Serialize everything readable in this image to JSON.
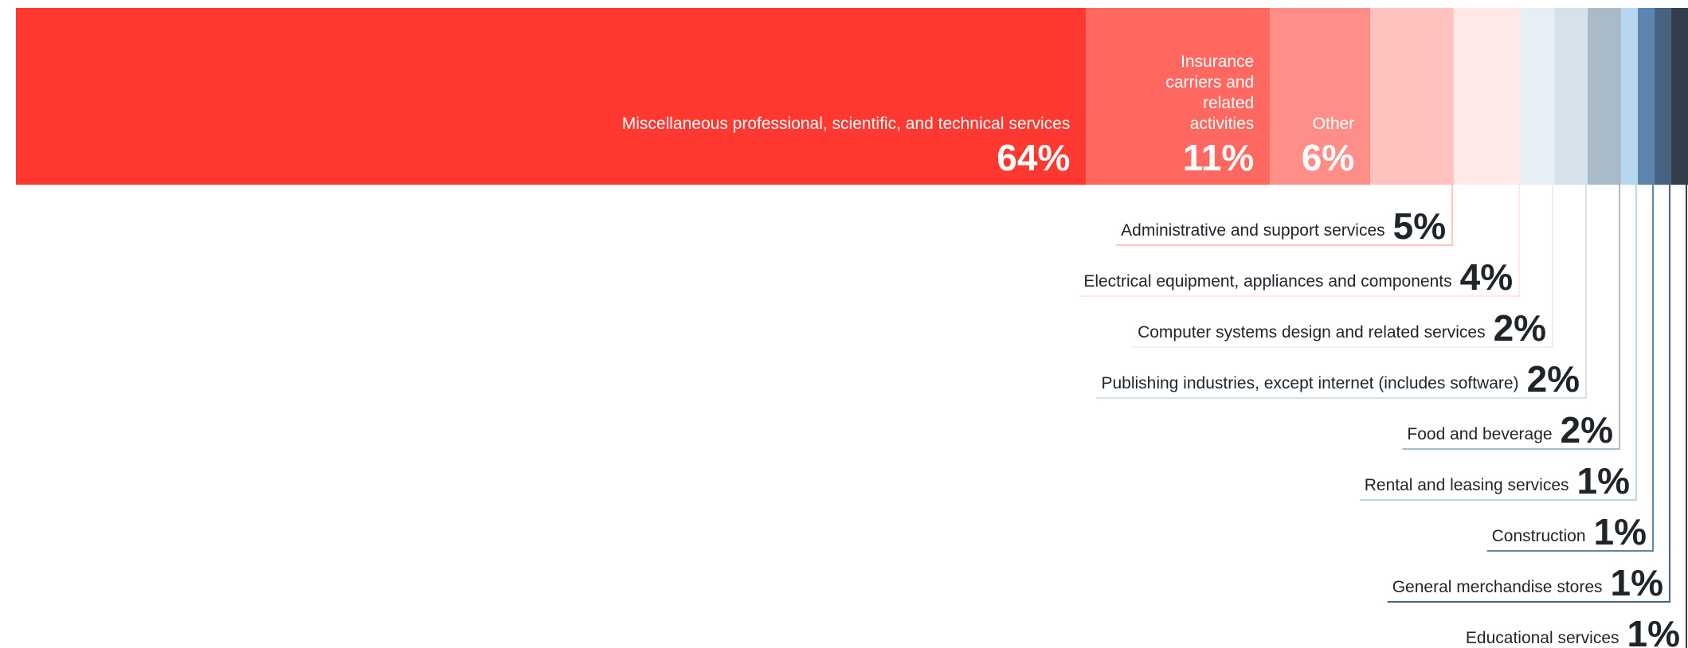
{
  "chart_data": {
    "type": "bar",
    "orientation": "horizontal-stacked",
    "categories": [
      "Miscellaneous professional, scientific, and technical services",
      "Insurance carriers and related activities",
      "Other",
      "Administrative and support services",
      "Electrical equipment, appliances and components",
      "Computer systems design and related services",
      "Publishing industries, except internet (includes software)",
      "Food and beverage",
      "Rental and leasing services",
      "Construction",
      "General merchandise stores",
      "Educational services"
    ],
    "values": [
      64,
      11,
      6,
      5,
      4,
      2,
      2,
      2,
      1,
      1,
      1,
      1
    ],
    "value_labels": [
      "64%",
      "11%",
      "6%",
      "5%",
      "4%",
      "2%",
      "2%",
      "2%",
      "1%",
      "1%",
      "1%",
      "1%"
    ],
    "colors": [
      "#ff3830",
      "#ff6761",
      "#ff8d88",
      "#ffc2bf",
      "#ffe9e8",
      "#e7eff6",
      "#d6e2eb",
      "#a9bac8",
      "#b6d7ef",
      "#5c86ad",
      "#466381",
      "#323f4b"
    ],
    "inside_label_color": "#ffffff",
    "outside_label_color": "#1f252b",
    "unit": "%"
  }
}
